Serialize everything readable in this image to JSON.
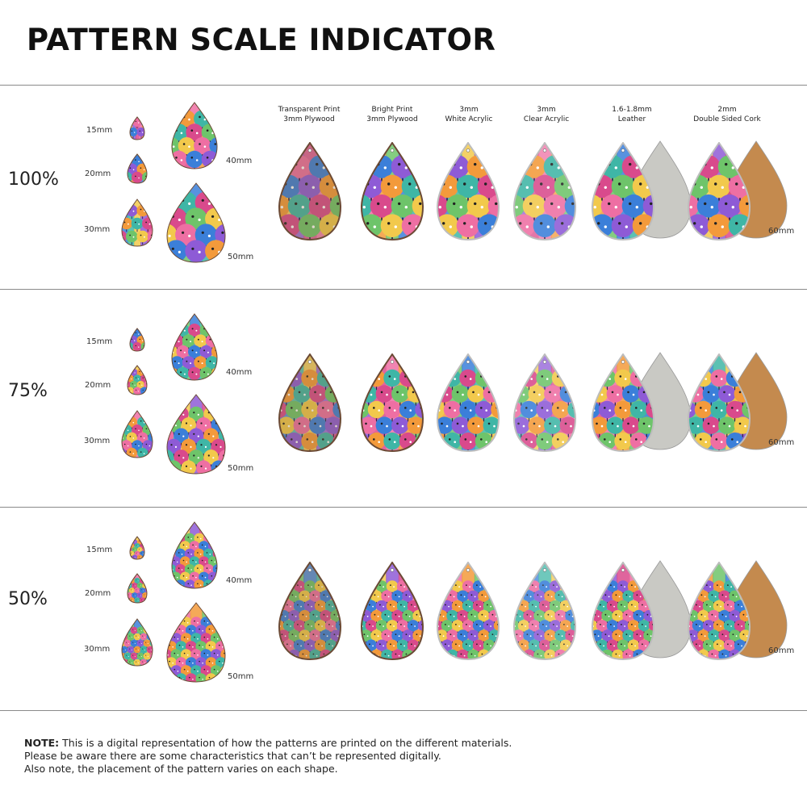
{
  "title": "PATTERN SCALE INDICATOR",
  "columns": [
    {
      "line1": "Transparent Print",
      "line2": "3mm Plywood"
    },
    {
      "line1": "Bright Print",
      "line2": "3mm Plywood"
    },
    {
      "line1": "3mm",
      "line2": "White Acrylic"
    },
    {
      "line1": "3mm",
      "line2": "Clear Acrylic"
    },
    {
      "line1": "1.6-1.8mm",
      "line2": "Leather"
    },
    {
      "line1": "2mm",
      "line2": "Double Sided Cork"
    }
  ],
  "size_labels": {
    "s15": "15mm",
    "s20": "20mm",
    "s30": "30mm",
    "s40": "40mm",
    "s50": "50mm",
    "s60": "60mm"
  },
  "rows": [
    {
      "scale": "100%"
    },
    {
      "scale": "75%"
    },
    {
      "scale": "50%"
    }
  ],
  "note": {
    "label": "NOTE:",
    "line1": " This is a digital representation of how the patterns are printed on the different materials.",
    "line2": "Please be aware there are some characteristics that can’t be represented digitally.",
    "line3": "Also note, the placement of the pattern varies on each shape."
  },
  "colors": {
    "plywood_edge": "#6b4a35",
    "leather_back": "#c9c9c4",
    "cork_back": "#c48a4e",
    "pattern": [
      "#f2c94c",
      "#ee6fa3",
      "#3b7fd9",
      "#8e5bd6",
      "#f39a3b",
      "#3fb6a6",
      "#d94a8c",
      "#6ec46a"
    ]
  }
}
